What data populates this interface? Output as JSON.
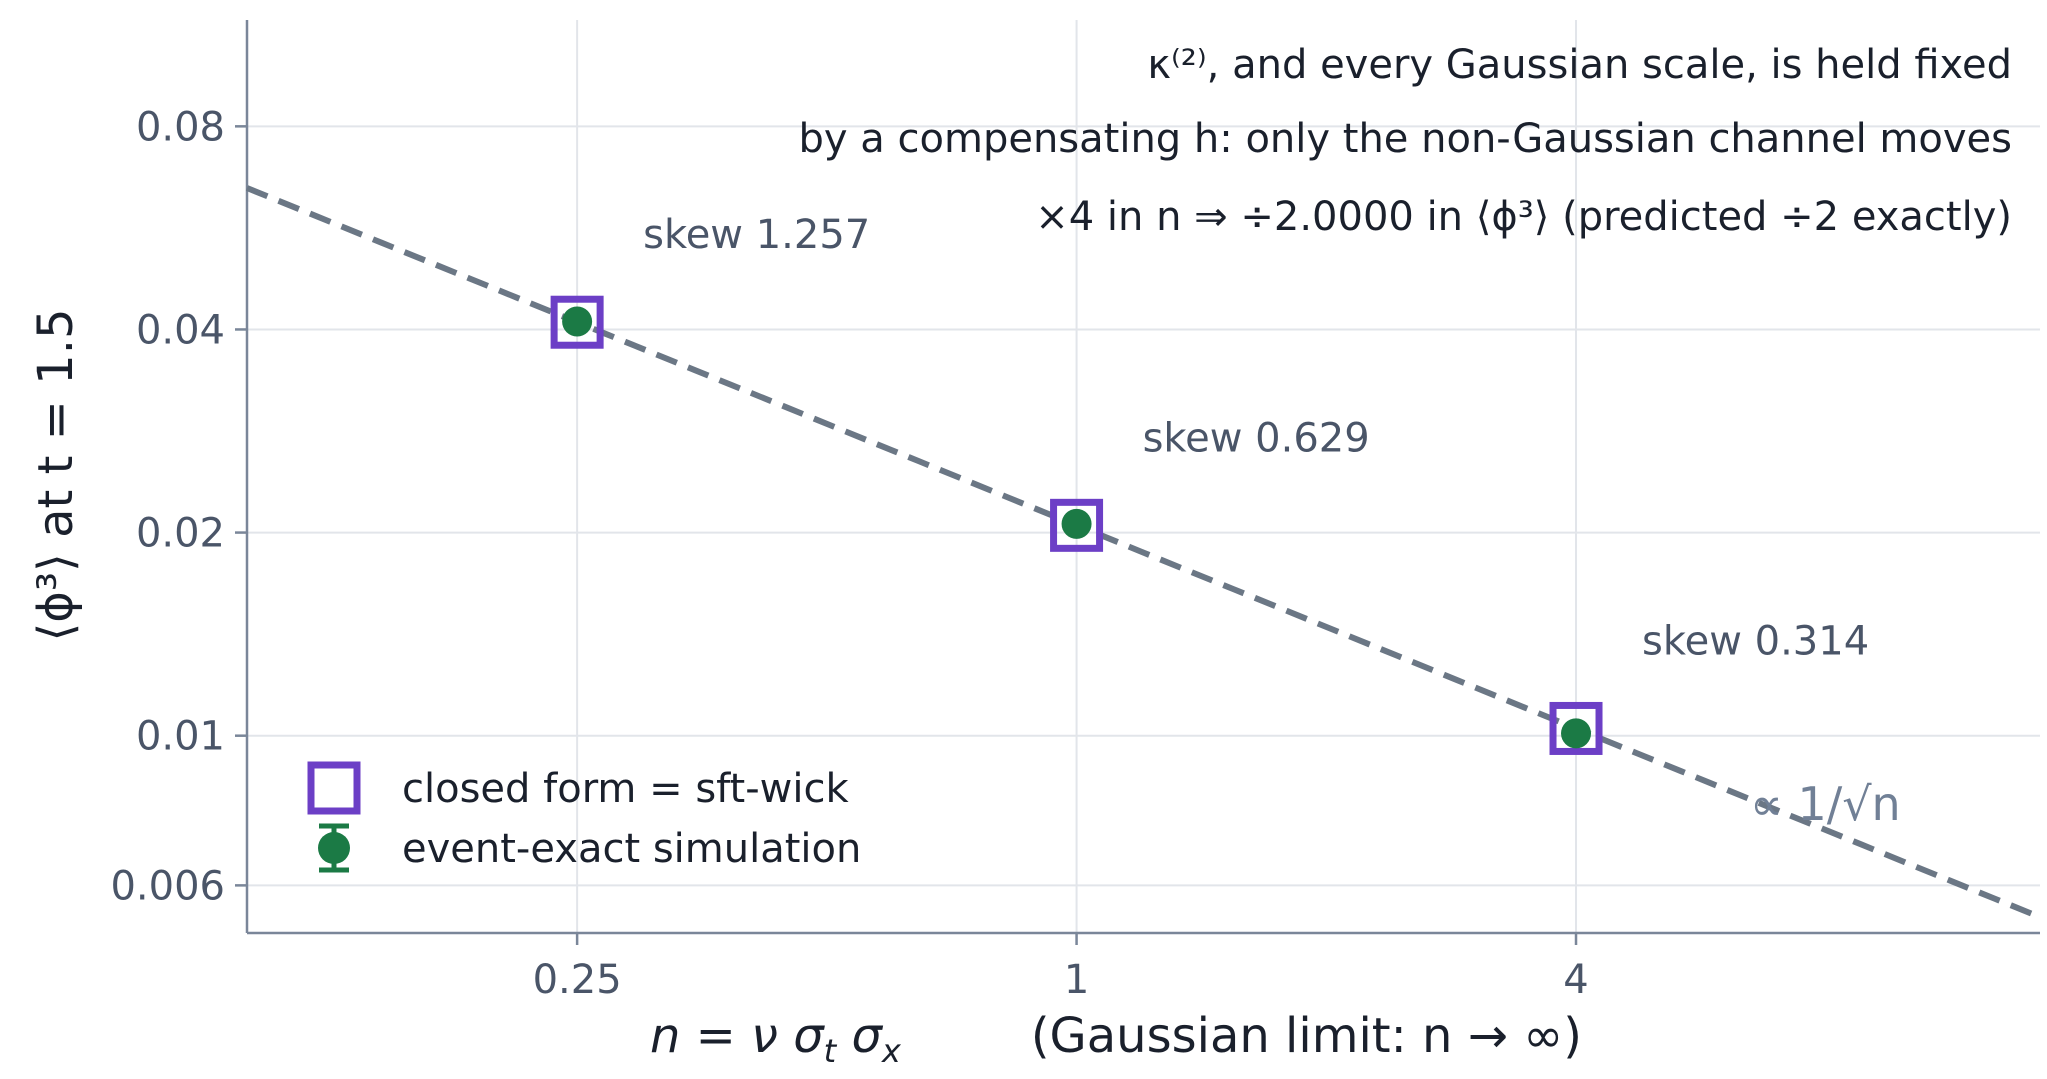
{
  "chart_data": {
    "type": "scatter",
    "x_scale": "log",
    "y_scale": "log",
    "xlim": [
      0.1,
      14.5
    ],
    "ylim": [
      0.0051,
      0.115
    ],
    "x_ticks": [
      {
        "value": 0.25,
        "label": "0.25"
      },
      {
        "value": 1,
        "label": "1"
      },
      {
        "value": 4,
        "label": "4"
      }
    ],
    "y_ticks": [
      {
        "value": 0.006,
        "label": "0.006"
      },
      {
        "value": 0.01,
        "label": "0.01"
      },
      {
        "value": 0.02,
        "label": "0.02"
      },
      {
        "value": 0.04,
        "label": "0.04"
      },
      {
        "value": 0.08,
        "label": "0.08"
      }
    ],
    "grid": true,
    "xlabel": {
      "formula": "n = ν σ",
      "formula_sub1": "t",
      "formula_mid": " σ",
      "formula_sub2": "x",
      "note": "(Gaussian limit: n → ∞)"
    },
    "ylabel": {
      "text": "⟨ϕ³⟩   at   t = 1.5"
    },
    "notes": {
      "line1": "κ⁽²⁾, and every Gaussian scale, is held fixed",
      "line2": "by a compensating h: only the non-Gaussian channel moves",
      "line3": "×4 in n  ⇒  ÷2.0000 in ⟨ϕ³⟩    (predicted ÷2 exactly)"
    },
    "reference_line": {
      "label": "∝ 1/√n",
      "coefficient": 0.0205,
      "exponent": -0.5,
      "color": "#6b7785"
    },
    "series": [
      {
        "name": "closed form  =  sft-wick",
        "marker": "open-square",
        "color": "#6c3fc6",
        "x": [
          0.25,
          1,
          4
        ],
        "y": [
          0.041,
          0.0205,
          0.01025
        ]
      },
      {
        "name": "event-exact simulation",
        "marker": "filled-circle-errorbar",
        "color": "#1b7a45",
        "x": [
          0.25,
          1,
          4
        ],
        "y": [
          0.0411,
          0.0206,
          0.01008
        ]
      }
    ],
    "annotations": [
      {
        "x": 0.25,
        "y": 0.041,
        "text": "skew 1.257"
      },
      {
        "x": 1,
        "y": 0.0205,
        "text": "skew 0.629"
      },
      {
        "x": 4,
        "y": 0.01025,
        "text": "skew 0.314"
      }
    ]
  }
}
